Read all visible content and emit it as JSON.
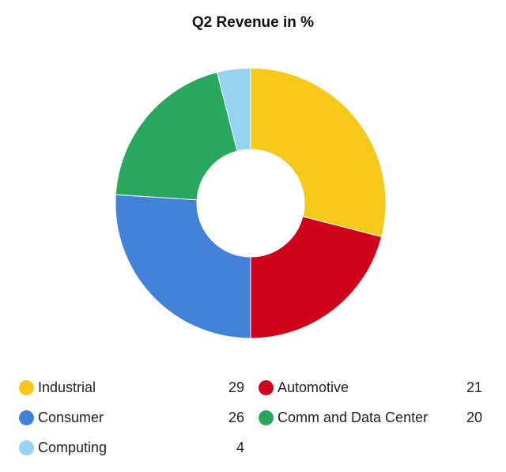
{
  "chart_data": {
    "type": "pie",
    "title": "Q2 Revenue in %",
    "donut": true,
    "legend": "bottom",
    "categories": [
      "Industrial",
      "Automotive",
      "Consumer",
      "Comm and Data Center",
      "Computing"
    ],
    "values": [
      29,
      21,
      26,
      20,
      4
    ],
    "colors": [
      "#f6c819",
      "#d0021b",
      "#4182d8",
      "#27a85d",
      "#95d3f1"
    ]
  }
}
